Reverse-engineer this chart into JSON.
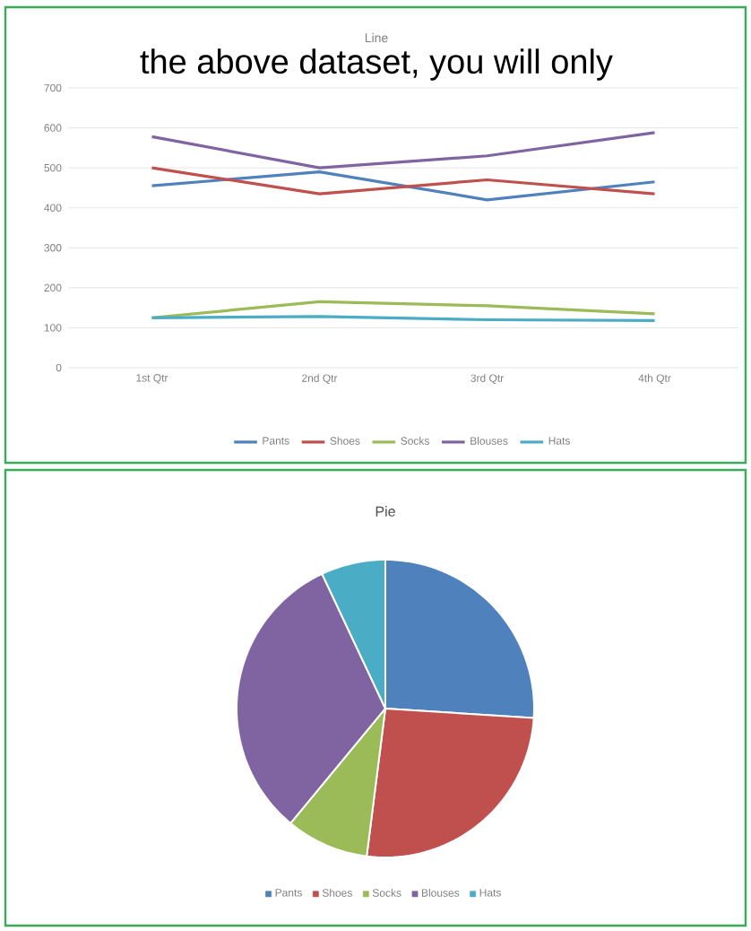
{
  "chart_data": [
    {
      "type": "line",
      "title": "Line",
      "annotations": [
        "the above dataset, you will only"
      ],
      "categories": [
        "1st Qtr",
        "2nd Qtr",
        "3rd Qtr",
        "4th Qtr"
      ],
      "series": [
        {
          "name": "Pants",
          "color": "#4f81bd",
          "values": [
            455,
            490,
            420,
            465
          ]
        },
        {
          "name": "Shoes",
          "color": "#c0504d",
          "values": [
            500,
            435,
            470,
            435
          ]
        },
        {
          "name": "Socks",
          "color": "#9bbb59",
          "values": [
            125,
            165,
            155,
            135
          ]
        },
        {
          "name": "Blouses",
          "color": "#8064a2",
          "values": [
            578,
            500,
            530,
            588
          ]
        },
        {
          "name": "Hats",
          "color": "#4bacc6",
          "values": [
            125,
            128,
            120,
            118
          ]
        }
      ],
      "ylim": [
        0,
        700
      ],
      "yticks": [
        0,
        100,
        200,
        300,
        400,
        500,
        600,
        700
      ],
      "grid": "y",
      "legend": "bottom"
    },
    {
      "type": "pie",
      "title": "Pie",
      "categories": [
        "Pants",
        "Shoes",
        "Socks",
        "Blouses",
        "Hats"
      ],
      "values": [
        26,
        26,
        9,
        32,
        7
      ],
      "colors": [
        "#4f81bd",
        "#c0504d",
        "#9bbb59",
        "#8064a2",
        "#4bacc6"
      ],
      "legend": "bottom"
    }
  ]
}
